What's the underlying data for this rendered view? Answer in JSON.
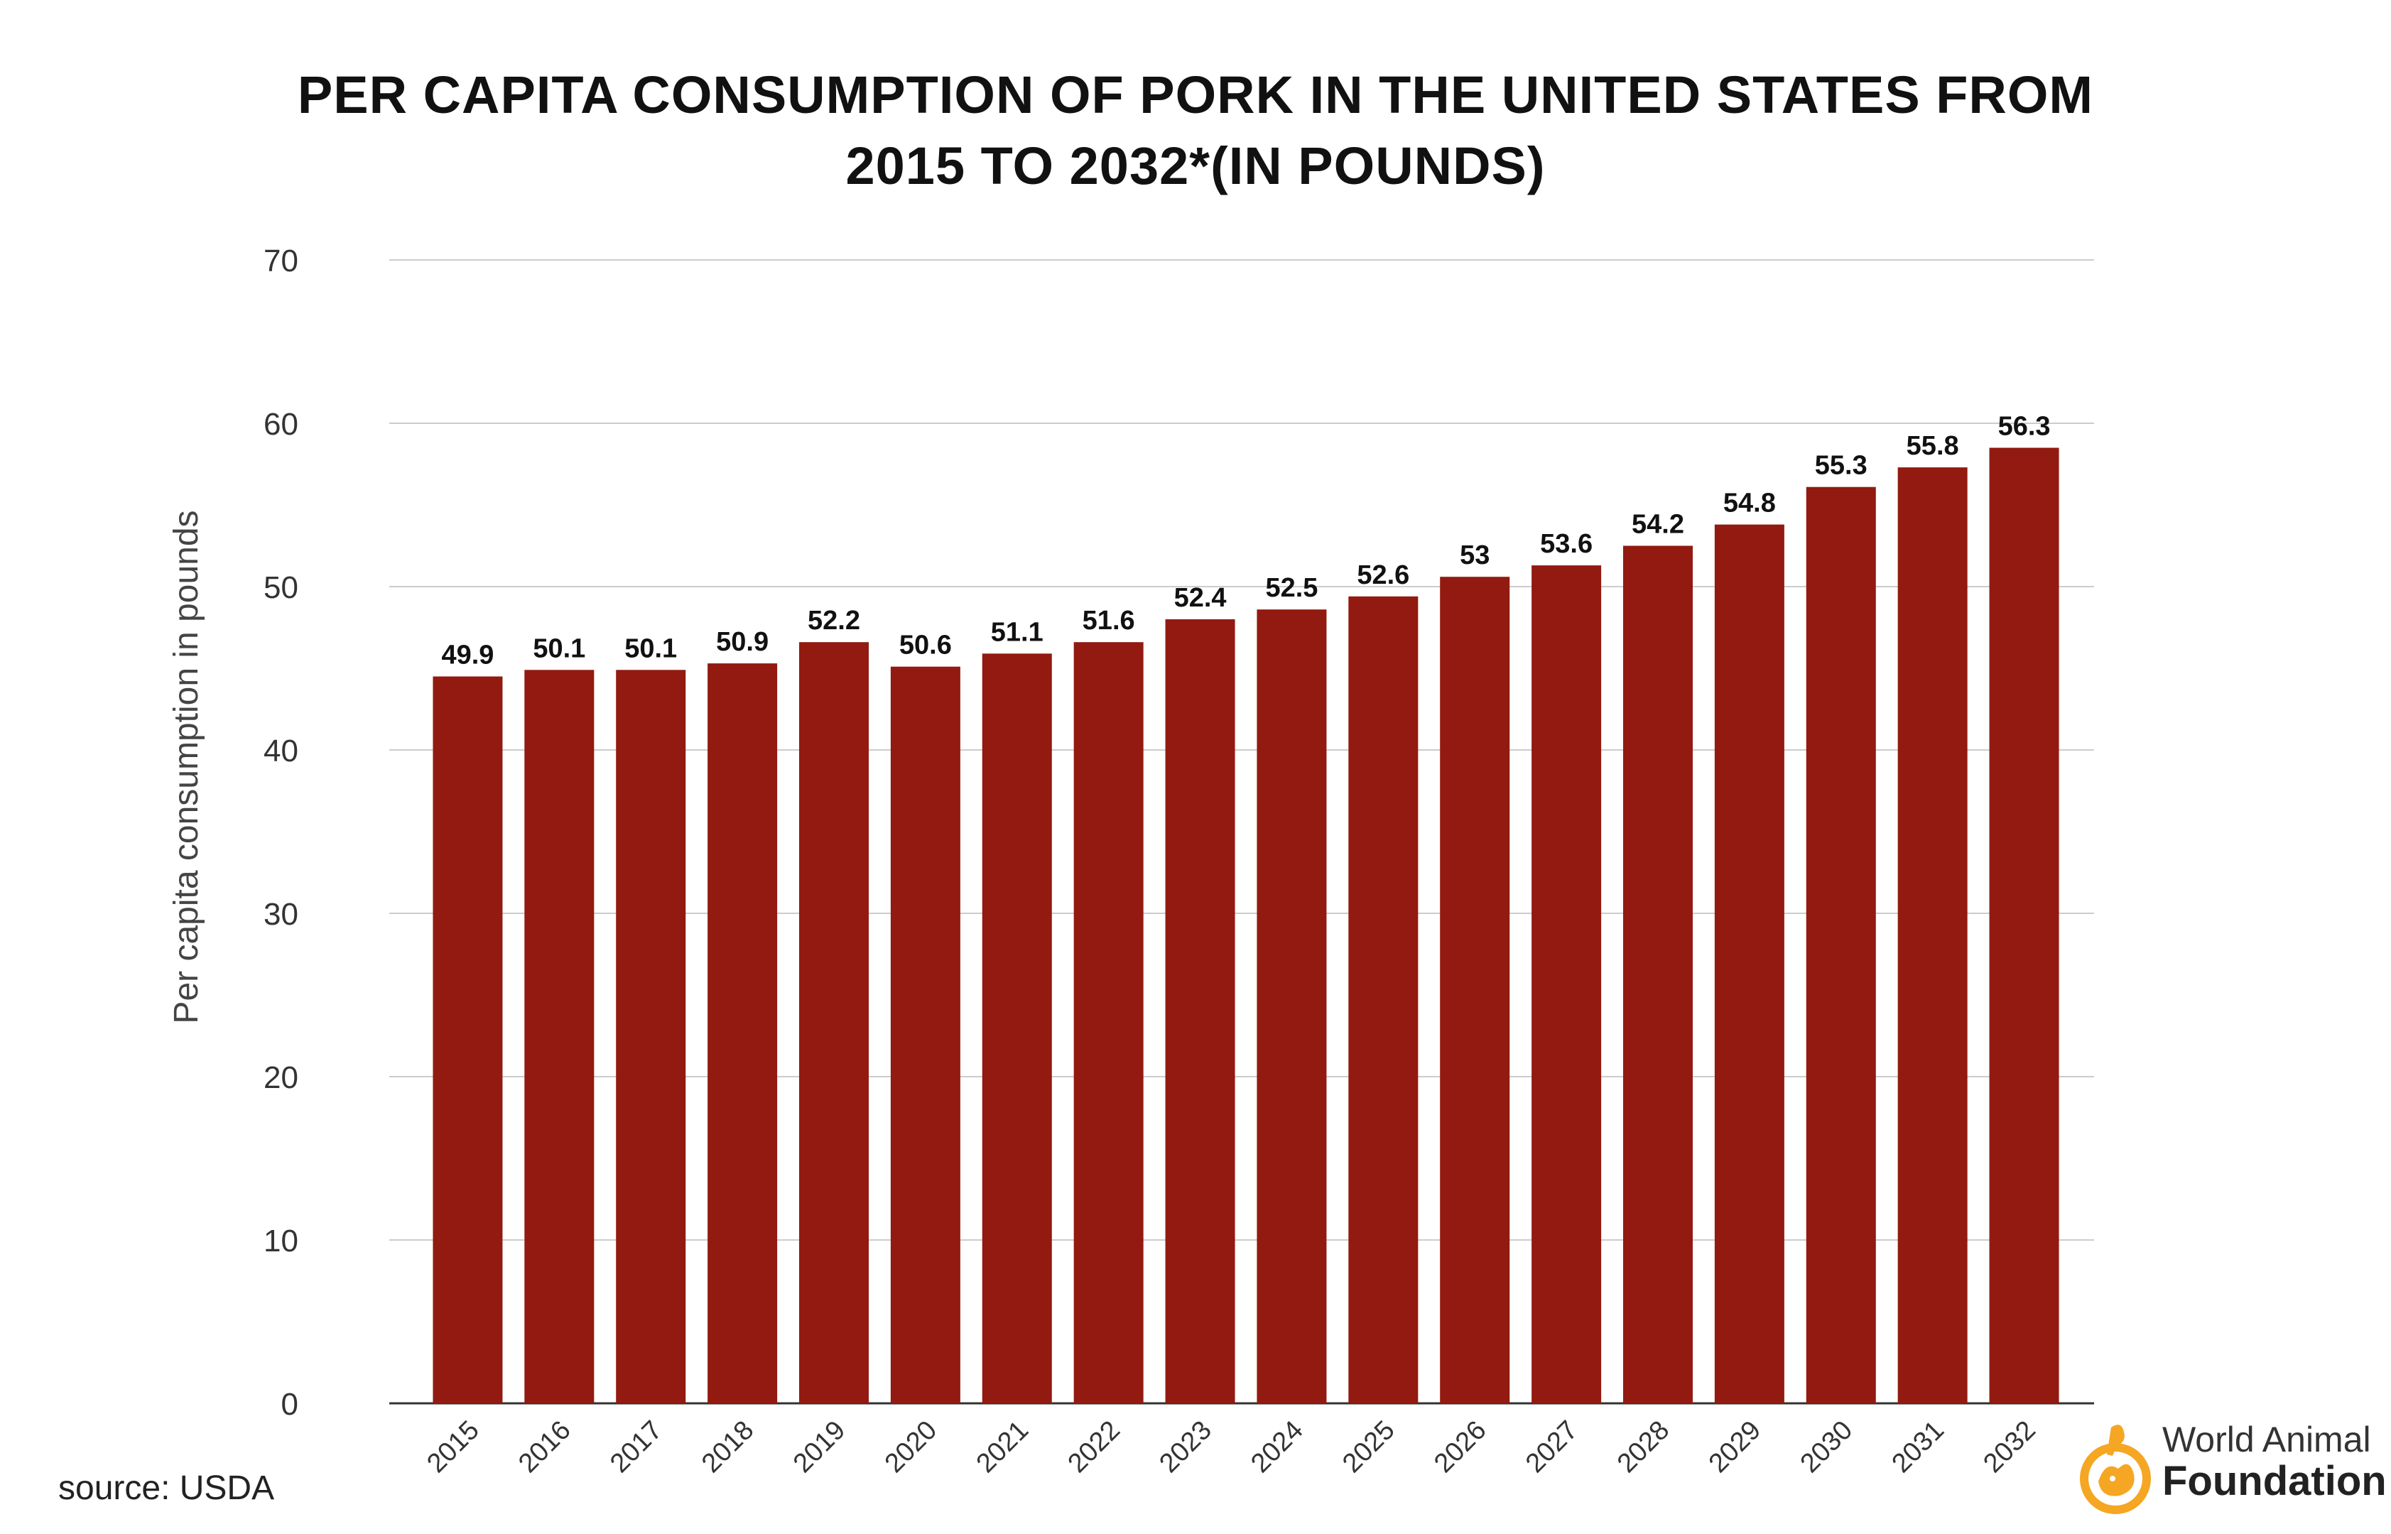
{
  "title_line1": "PER CAPITA CONSUMPTION OF PORK IN THE UNITED STATES FROM",
  "title_line2": "2015 TO 2032*(IN POUNDS)",
  "source": "source: USDA",
  "logo": {
    "line1": "World Animal",
    "line2": "Foundation",
    "icon": "dog-cat-circle-icon",
    "color": "#f5a623"
  },
  "colors": {
    "bar": "#921a10",
    "grid": "#cccccc",
    "axis": "#333333"
  },
  "chart_data": {
    "type": "bar",
    "title": "PER CAPITA CONSUMPTION OF PORK IN THE UNITED STATES FROM 2015 TO 2032*(IN POUNDS)",
    "xlabel": "",
    "ylabel": "Per capita consumption in pounds",
    "ylim": [
      0,
      70
    ],
    "yticks": [
      0,
      10,
      20,
      30,
      40,
      50,
      60,
      70
    ],
    "grid": true,
    "categories": [
      "2015",
      "2016",
      "2017",
      "2018",
      "2019",
      "2020",
      "2021",
      "2022",
      "2023",
      "2024",
      "2025",
      "2026",
      "2027",
      "2028",
      "2029",
      "2030",
      "2031",
      "2032"
    ],
    "values": [
      49.9,
      50.1,
      50.1,
      50.9,
      52.2,
      50.6,
      51.1,
      51.6,
      52.4,
      52.5,
      52.6,
      53,
      53.6,
      54.2,
      54.8,
      55.3,
      55.8,
      56.3
    ],
    "bar_heights_as_drawn": [
      44.5,
      44.9,
      44.9,
      45.3,
      46.6,
      45.1,
      45.9,
      46.6,
      48,
      48.6,
      49.4,
      50.6,
      51.3,
      52.5,
      53.8,
      56.1,
      57.3,
      58.5
    ],
    "data_labels": [
      "49.9",
      "50.1",
      "50.1",
      "50.9",
      "52.2",
      "50.6",
      "51.1",
      "51.6",
      "52.4",
      "52.5",
      "52.6",
      "53",
      "53.6",
      "54.2",
      "54.8",
      "55.3",
      "55.8",
      "56.3"
    ]
  }
}
